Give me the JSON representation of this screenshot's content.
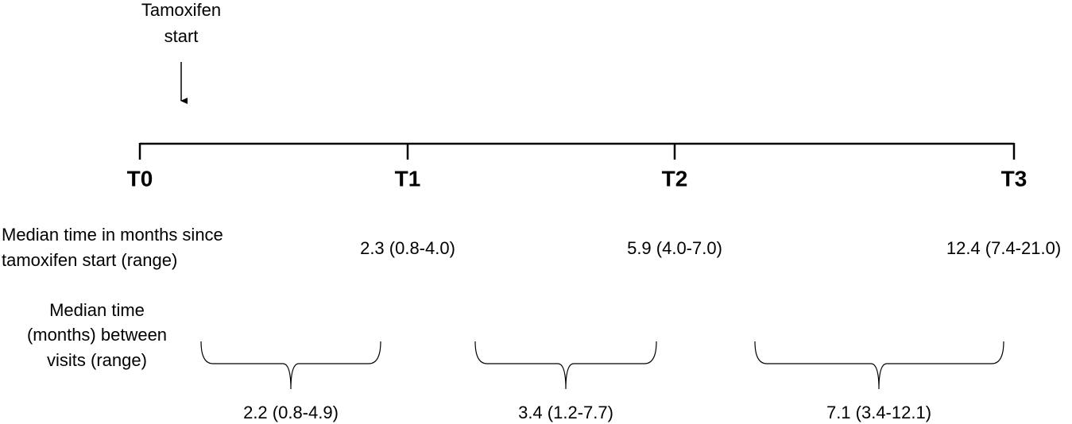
{
  "annotation": {
    "lines": [
      "Tamoxifen",
      "start"
    ]
  },
  "timepoints": [
    "T0",
    "T1",
    "T2",
    "T3"
  ],
  "since_start": {
    "label_lines": [
      "Median time in months since",
      "tamoxifen start (range)"
    ],
    "values": [
      "2.3 (0.8-4.0)",
      "5.9 (4.0-7.0)",
      "12.4 (7.4-21.0)"
    ]
  },
  "between_visits": {
    "label_lines": [
      "Median time",
      "(months) between",
      "visits (range)"
    ],
    "values": [
      "2.2 (0.8-4.9)",
      "3.4 (1.2-7.7)",
      "7.1 (3.4-12.1)"
    ]
  }
}
